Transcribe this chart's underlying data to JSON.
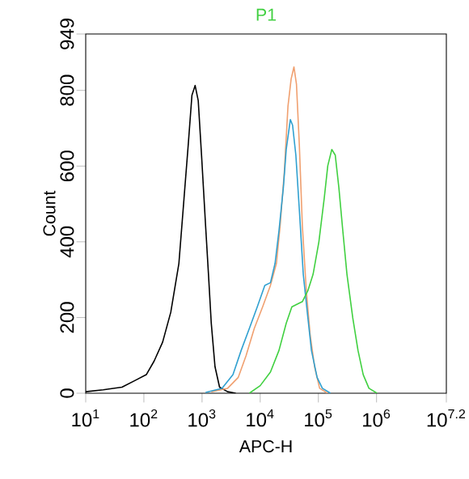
{
  "chart_data": {
    "type": "line",
    "title": "P1",
    "xlabel": "APC-H",
    "ylabel": "Count",
    "log": "x",
    "marker": "none",
    "line_style": "solid",
    "xlim": [
      10,
      15848932
    ],
    "ylim": [
      0,
      949
    ],
    "xticks": [
      {
        "value": 10,
        "label": "10$^{1}$"
      },
      {
        "value": 100,
        "label": "10$^{2}$"
      },
      {
        "value": 1000,
        "label": "10$^{3}$"
      },
      {
        "value": 10000,
        "label": "10$^{4}$"
      },
      {
        "value": 100000,
        "label": "10$^{5}$"
      },
      {
        "value": 1000000,
        "label": "10$^{6}$"
      },
      {
        "value": 15848932,
        "label": "10$^{7.2}$"
      }
    ],
    "yticks": [
      0,
      200,
      400,
      600,
      800,
      949
    ],
    "series": [
      {
        "color": "#000000",
        "x": [
          10,
          20,
          42,
          71,
          110,
          150,
          210,
          290,
          400,
          490,
          580,
          670,
          760,
          860,
          980,
          1150,
          1290,
          1440,
          1670,
          2000,
          2750,
          3800
        ],
        "values": [
          4,
          9,
          16,
          34,
          49,
          85,
          135,
          214,
          343,
          515,
          658,
          787,
          813,
          773,
          629,
          443,
          314,
          185,
          70,
          16,
          4,
          0
        ]
      },
      {
        "color": "#f0a070",
        "x": [
          1440,
          2750,
          4200,
          5700,
          7900,
          11000,
          15000,
          19000,
          22000,
          26000,
          30000,
          34000,
          38000,
          42000,
          47000,
          53000,
          62000,
          72000,
          86000,
          105000,
          144000
        ],
        "values": [
          4,
          13,
          42,
          99,
          171,
          228,
          285,
          343,
          443,
          586,
          758,
          830,
          862,
          816,
          658,
          443,
          271,
          156,
          70,
          13,
          0
        ]
      },
      {
        "color": "#30a0d0",
        "x": [
          1150,
          2200,
          3400,
          4700,
          6500,
          8900,
          12000,
          15000,
          18000,
          21000,
          25000,
          28000,
          33000,
          36000,
          41000,
          47000,
          55000,
          66000,
          76000,
          95000,
          117000,
          162000
        ],
        "values": [
          2,
          13,
          49,
          113,
          171,
          228,
          285,
          292,
          343,
          429,
          543,
          644,
          723,
          708,
          629,
          486,
          314,
          199,
          113,
          42,
          13,
          0
        ]
      },
      {
        "color": "#40d040",
        "x": [
          6500,
          10000,
          15000,
          21000,
          28000,
          35000,
          43000,
          53000,
          66000,
          81000,
          102000,
          126000,
          145000,
          170000,
          195000,
          225000,
          263000,
          310000,
          390000,
          480000,
          590000,
          740000,
          1020000
        ],
        "values": [
          0,
          20,
          56,
          113,
          185,
          228,
          235,
          242,
          271,
          314,
          400,
          515,
          601,
          644,
          629,
          543,
          429,
          314,
          199,
          113,
          49,
          13,
          0
        ]
      }
    ]
  }
}
